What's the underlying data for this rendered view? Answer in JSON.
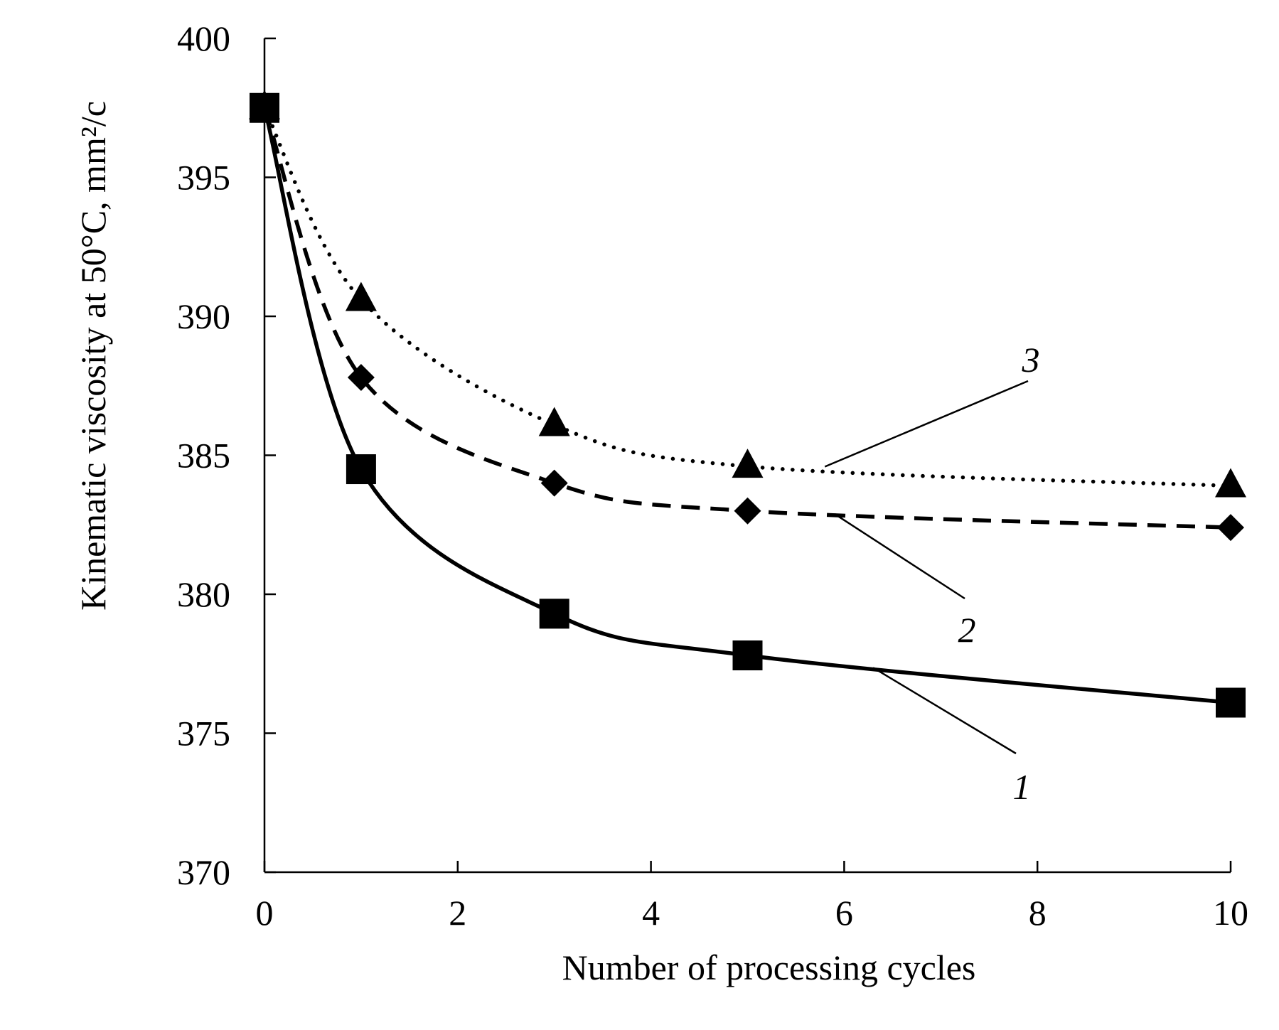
{
  "chart_data": {
    "type": "line",
    "xlabel": "Number of processing cycles",
    "ylabel": "Kinematic viscosity at 50°C, mm²/c",
    "xlim": [
      0,
      10
    ],
    "ylim": [
      370,
      400
    ],
    "x_ticks": [
      "0",
      "2",
      "4",
      "6",
      "8",
      "10"
    ],
    "y_ticks": [
      "370",
      "375",
      "380",
      "385",
      "390",
      "395",
      "400"
    ],
    "grid": false,
    "series": [
      {
        "name": "1",
        "marker": "square",
        "line_style": "solid",
        "x": [
          0,
          1,
          3,
          5,
          10
        ],
        "values": [
          397.5,
          384.5,
          379.3,
          377.8,
          376.1
        ]
      },
      {
        "name": "2",
        "marker": "diamond",
        "line_style": "dashed",
        "x": [
          0,
          1,
          3,
          5,
          10
        ],
        "values": [
          397.5,
          387.8,
          384.0,
          383.0,
          382.4
        ]
      },
      {
        "name": "3",
        "marker": "triangle",
        "line_style": "dotted",
        "x": [
          0,
          1,
          3,
          5,
          10
        ],
        "values": [
          397.5,
          390.6,
          386.1,
          384.6,
          383.9
        ]
      }
    ],
    "annotations": [
      {
        "text": "1",
        "points_to_series": "1",
        "anchor_x": 6.3
      },
      {
        "text": "2",
        "points_to_series": "2",
        "anchor_x": 5.9
      },
      {
        "text": "3",
        "points_to_series": "3",
        "anchor_x": 5.8
      }
    ]
  }
}
